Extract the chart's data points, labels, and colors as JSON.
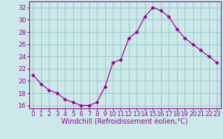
{
  "x": [
    0,
    1,
    2,
    3,
    4,
    5,
    6,
    7,
    8,
    9,
    10,
    11,
    12,
    13,
    14,
    15,
    16,
    17,
    18,
    19,
    20,
    21,
    22,
    23
  ],
  "y": [
    21,
    19.5,
    18.5,
    18,
    17,
    16.5,
    16,
    16,
    16.5,
    19,
    23,
    23.5,
    27,
    28,
    30.5,
    32,
    31.5,
    30.5,
    28.5,
    27,
    26,
    25,
    24,
    23
  ],
  "line_color": "#990099",
  "marker": "D",
  "marker_size": 2.5,
  "bg_color": "#cce8e8",
  "grid_color": "#99cccc",
  "xlabel": "Windchill (Refroidissement éolien,°C)",
  "xlabel_fontsize": 7,
  "tick_fontsize": 6.5,
  "ylim": [
    15.5,
    33
  ],
  "yticks": [
    16,
    18,
    20,
    22,
    24,
    26,
    28,
    30,
    32
  ],
  "xlim": [
    -0.5,
    23.5
  ],
  "xticks": [
    0,
    1,
    2,
    3,
    4,
    5,
    6,
    7,
    8,
    9,
    10,
    11,
    12,
    13,
    14,
    15,
    16,
    17,
    18,
    19,
    20,
    21,
    22,
    23
  ]
}
